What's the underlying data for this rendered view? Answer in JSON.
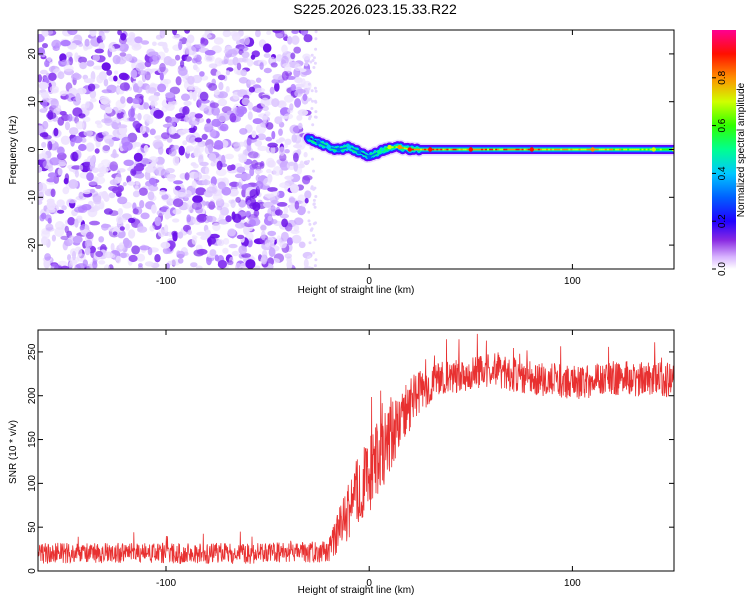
{
  "title": "S225.2026.023.15.33.R22",
  "chart_data": [
    {
      "type": "heatmap",
      "name": "spectrogram",
      "xlabel": "Height of straight line (km)",
      "ylabel": "Frequency (Hz)",
      "xlim": [
        -163,
        150
      ],
      "ylim": [
        -25,
        25
      ],
      "xticks": [
        -100,
        0,
        100
      ],
      "xtick_labels": [
        "-100",
        "0",
        "100"
      ],
      "yticks": [
        -20,
        -10,
        0,
        10,
        20
      ],
      "ytick_labels": [
        "-20",
        "-10",
        "0",
        "10",
        "20"
      ],
      "noise_region_end_km": -30,
      "signal_trace": {
        "x": [
          -30,
          -25,
          -20,
          -15,
          -10,
          -5,
          0,
          5,
          10,
          15,
          20,
          30,
          50,
          80,
          110,
          140,
          150
        ],
        "y": [
          2.5,
          1.5,
          0.5,
          0.0,
          0.5,
          -0.5,
          -1.5,
          -0.5,
          0.5,
          0.5,
          0.0,
          0.0,
          0.0,
          0.0,
          0.0,
          0.0,
          0.0
        ],
        "amplitude": [
          0.3,
          0.35,
          0.4,
          0.35,
          0.4,
          0.3,
          0.3,
          0.5,
          0.7,
          0.8,
          0.9,
          0.9,
          0.9,
          0.9,
          0.85,
          0.7,
          0.7
        ]
      },
      "colorbar": {
        "label": "Normalized spectral amplitude",
        "range": [
          0.0,
          1.0
        ],
        "ticks": [
          0.0,
          0.2,
          0.4,
          0.6,
          0.8
        ],
        "tick_labels": [
          "0.0",
          "0.2",
          "0.4",
          "0.6",
          "0.8"
        ],
        "colors": [
          "#ffffff",
          "#b46cff",
          "#6a00ff",
          "#0000ff",
          "#00c8ff",
          "#00ff80",
          "#40ff00",
          "#ffff00",
          "#ff8000",
          "#ff0000",
          "#ff00a0"
        ]
      }
    },
    {
      "type": "line",
      "name": "snr",
      "xlabel": "Height of straight line (km)",
      "ylabel": "SNR (10 * v/v)",
      "xlim": [
        -163,
        150
      ],
      "ylim": [
        0,
        275
      ],
      "xticks": [
        -100,
        0,
        100
      ],
      "xtick_labels": [
        "-100",
        "0",
        "100"
      ],
      "yticks": [
        0,
        50,
        100,
        150,
        200,
        250
      ],
      "ytick_labels": [
        "0",
        "50",
        "100",
        "150",
        "200",
        "250"
      ],
      "color": "#e83030",
      "envelope": {
        "x": [
          -163,
          -60,
          -20,
          -15,
          -10,
          -5,
          0,
          5,
          10,
          15,
          20,
          25,
          30,
          40,
          60,
          80,
          100,
          120,
          150
        ],
        "mean": [
          20,
          20,
          22,
          45,
          70,
          95,
          110,
          130,
          150,
          170,
          190,
          205,
          212,
          222,
          230,
          220,
          215,
          220,
          218
        ],
        "spread": [
          12,
          12,
          12,
          25,
          35,
          40,
          45,
          45,
          40,
          35,
          30,
          25,
          22,
          20,
          20,
          20,
          20,
          20,
          20
        ]
      }
    }
  ]
}
